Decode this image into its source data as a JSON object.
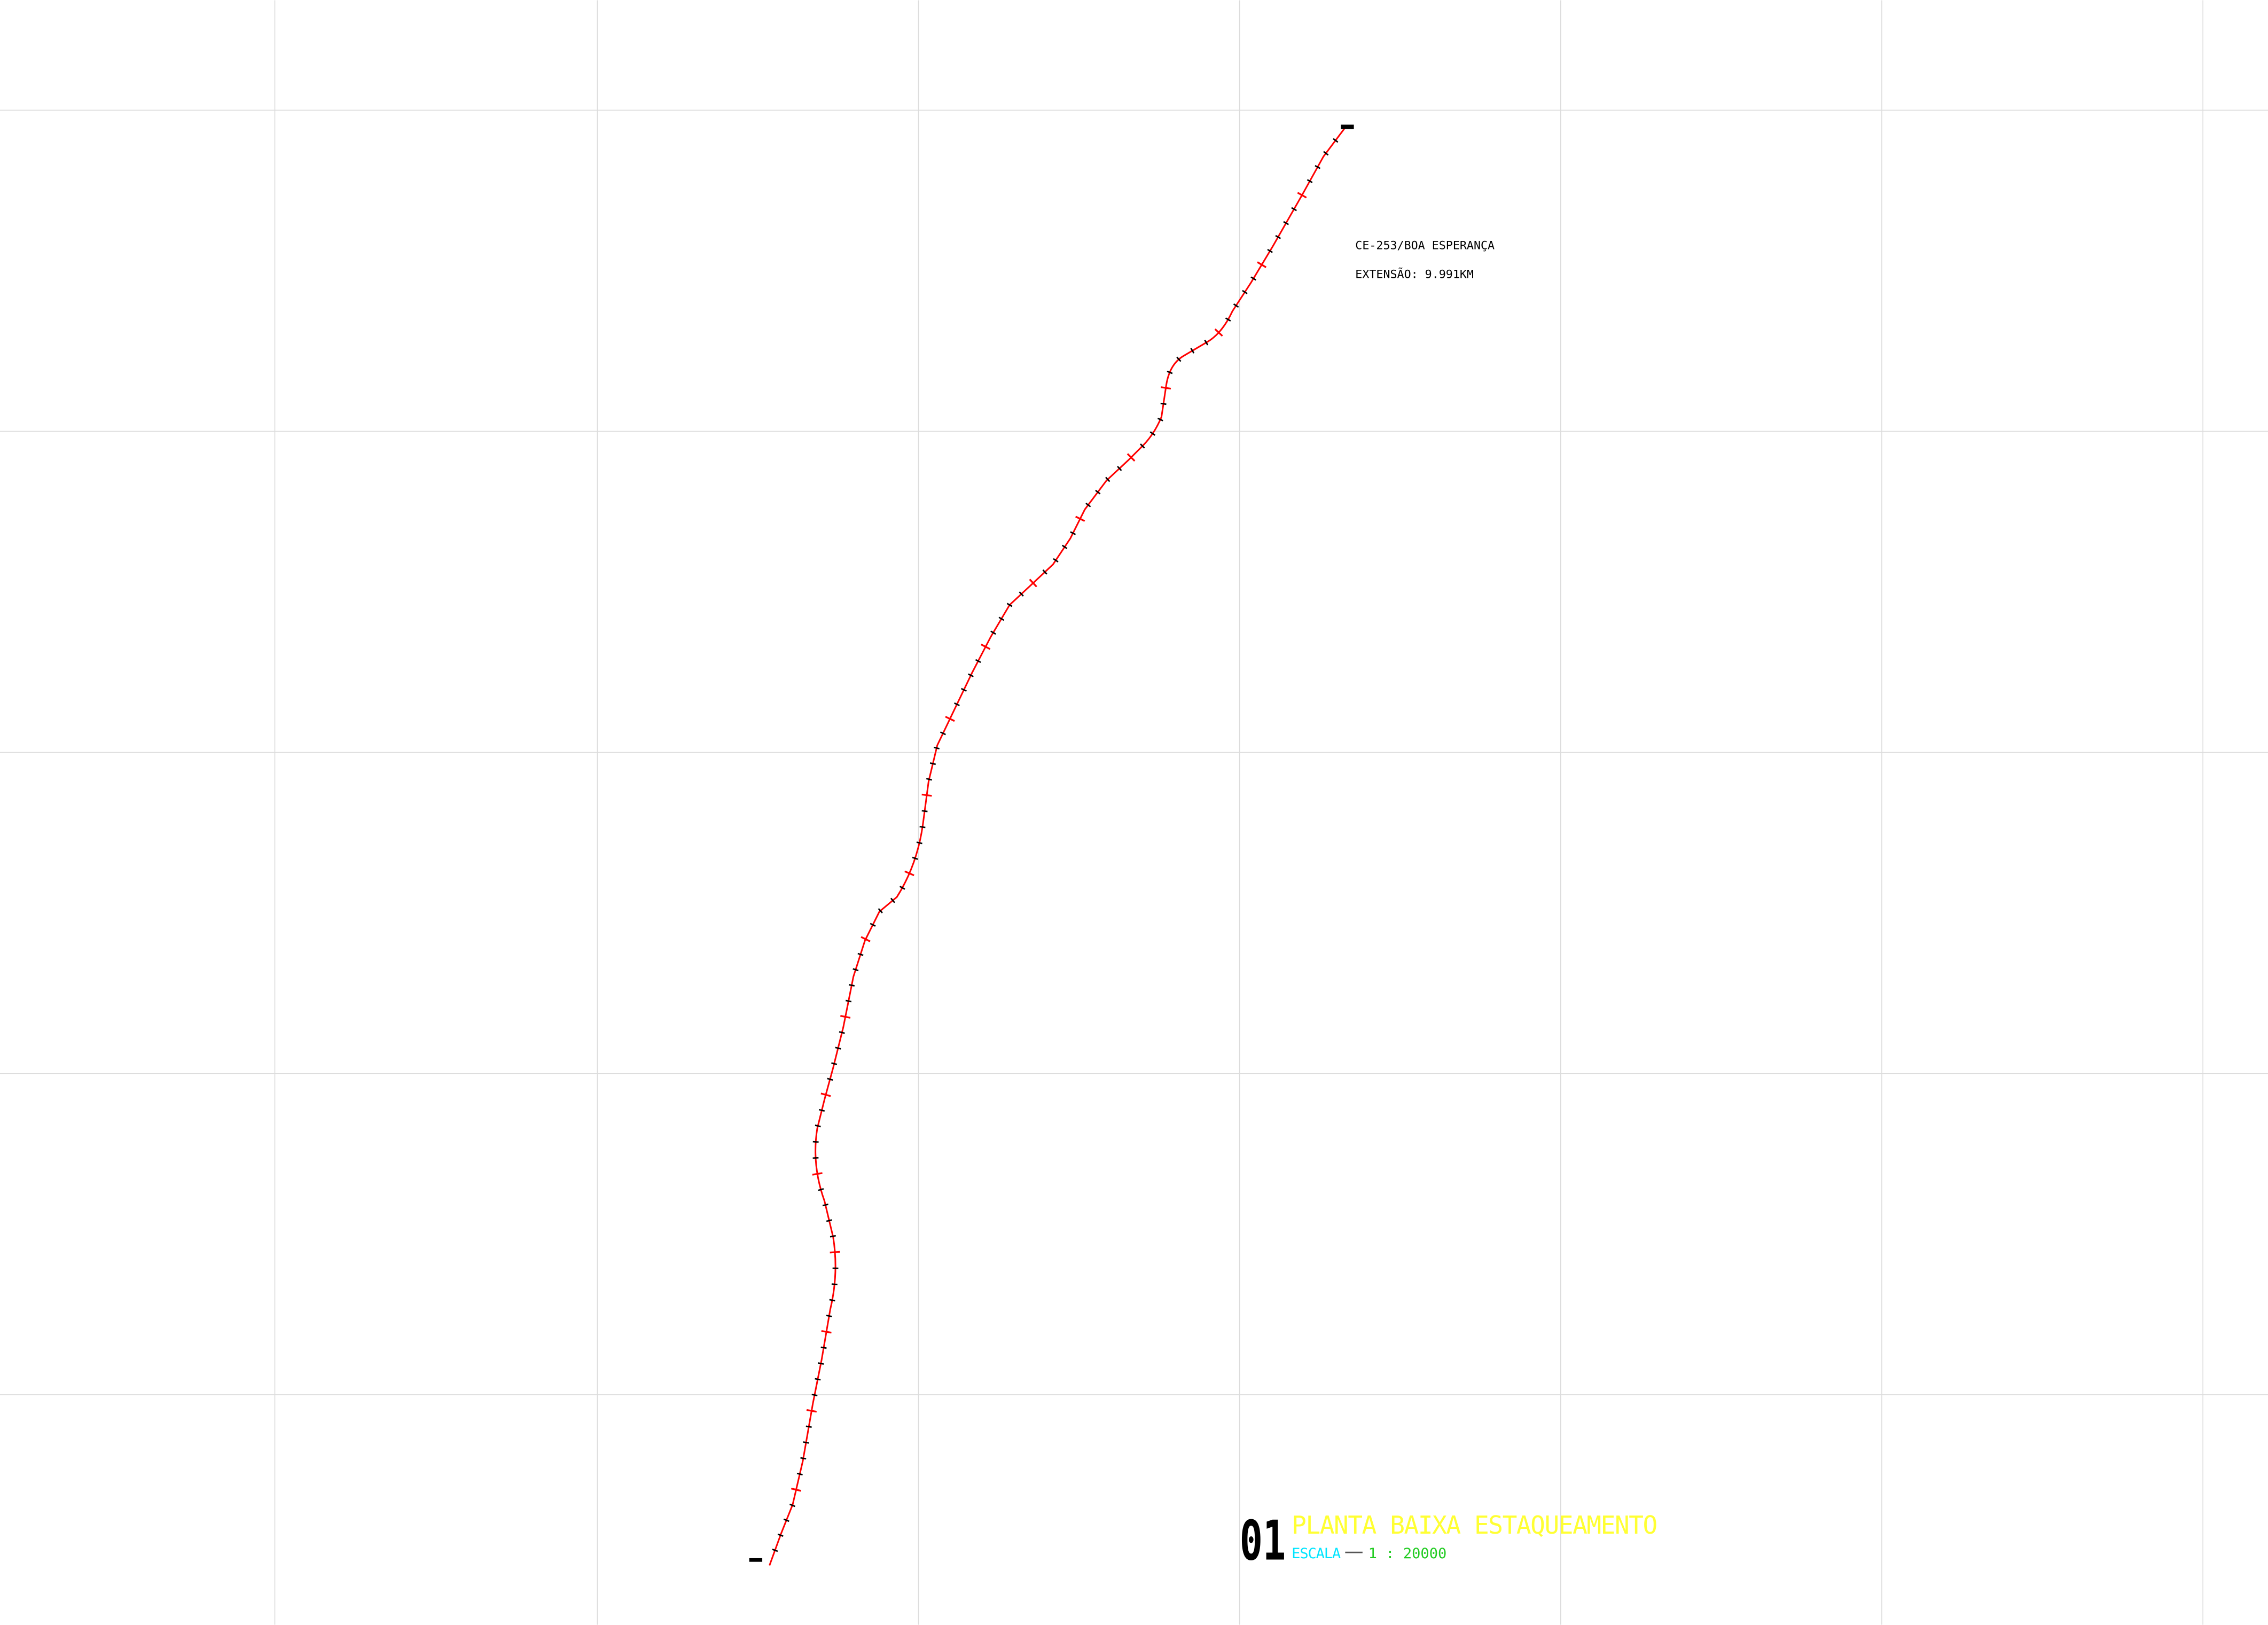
{
  "annotation": {
    "road": "CE-253/BOA ESPERANÇA",
    "extension": "EXTENSÃO: 9.991KM"
  },
  "title_block": {
    "number": "01",
    "title": "PLANTA BAIXA ESTAQUEAMENTO",
    "scale_label": "ESCALA",
    "scale": "1 : 20000"
  }
}
